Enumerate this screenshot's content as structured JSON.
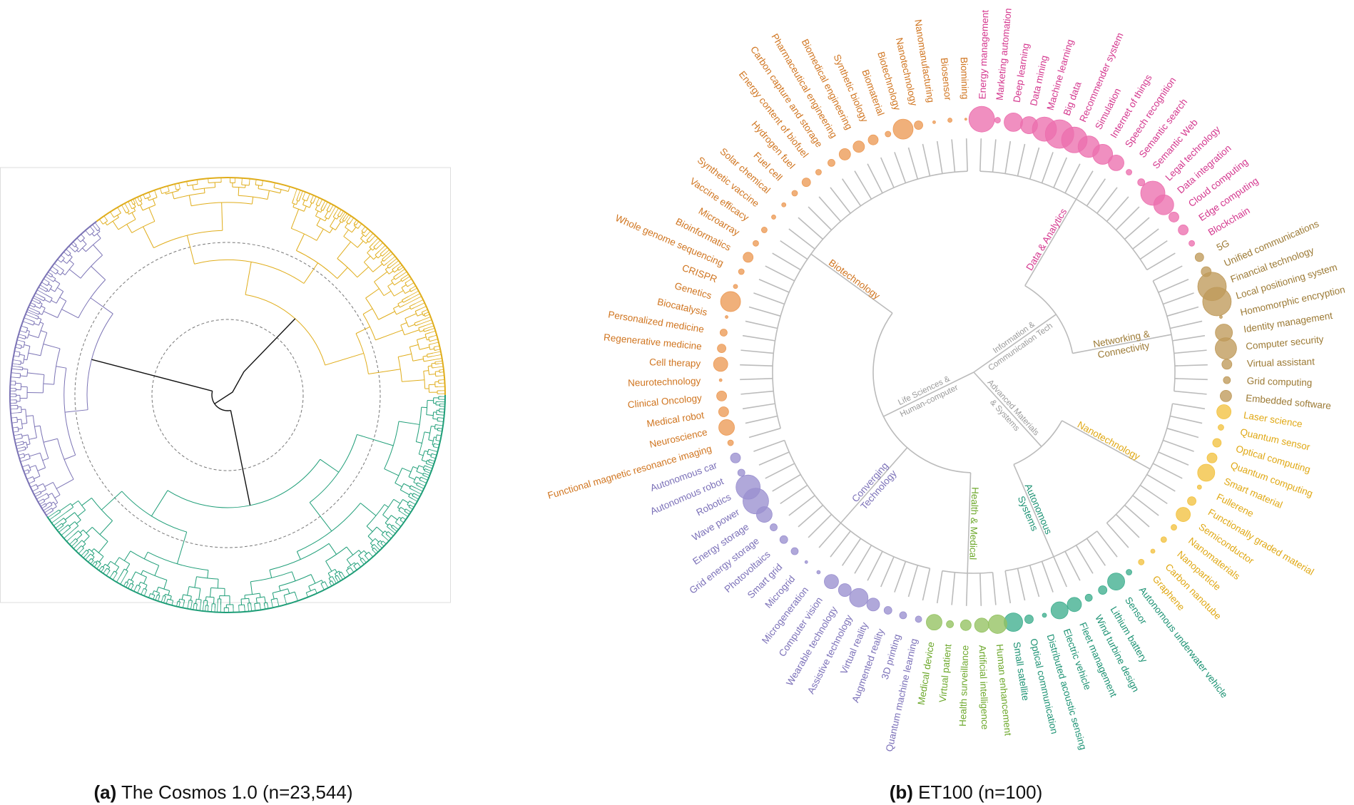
{
  "panel_a": {
    "caption_letter": "(a)",
    "caption_text": "The Cosmos 1.0 (n=23,544)",
    "clusters": [
      {
        "color": "#e0ad1b"
      },
      {
        "color": "#1f9e78"
      },
      {
        "color": "#7b73b5"
      }
    ],
    "root_color": "#111111",
    "guide_color": "#777777"
  },
  "panel_b": {
    "caption_letter": "(b)",
    "caption_text": "ET100 (n=100)",
    "branch_color": "#bbbbbb",
    "groups": [
      {
        "lines": [
          "Information &",
          "Communication Tech"
        ],
        "clusters": [
          0,
          1
        ]
      },
      {
        "lines": [
          "Advanced Materials",
          "& Systems"
        ],
        "clusters": [
          2,
          3
        ]
      },
      {
        "lines": [
          "Life Sciences &",
          "Human-computer"
        ],
        "clusters": [
          4,
          5,
          6
        ]
      }
    ],
    "clusters": [
      {
        "lines": [
          "Data & Analytics"
        ],
        "fill": "#ec6fae",
        "label_color": "#d4378e",
        "leaves": [
          {
            "name": "Energy management",
            "size": 18
          },
          {
            "name": "Marketing automation",
            "size": 4
          },
          {
            "name": "Deep learning",
            "size": 13
          },
          {
            "name": "Data mining",
            "size": 12
          },
          {
            "name": "Machine learning",
            "size": 17
          },
          {
            "name": "Big data",
            "size": 20
          },
          {
            "name": "Recommender system",
            "size": 18
          },
          {
            "name": "Simulation",
            "size": 15
          },
          {
            "name": "Internet of things",
            "size": 14
          },
          {
            "name": "Speech recognition",
            "size": 11
          },
          {
            "name": "Semantic search",
            "size": 4
          },
          {
            "name": "Semantic Web",
            "size": 5
          },
          {
            "name": "Legal technology",
            "size": 17
          },
          {
            "name": "Data integration",
            "size": 14
          },
          {
            "name": "Cloud computing",
            "size": 7
          },
          {
            "name": "Edge computing",
            "size": 7
          },
          {
            "name": "Blockchain",
            "size": 4
          }
        ]
      },
      {
        "lines": [
          "Networking &",
          "Connectivity"
        ],
        "fill": "#bf9a5a",
        "label_color": "#9c7a35",
        "leaves": [
          {
            "name": "5G",
            "size": 6
          },
          {
            "name": "Unified communications",
            "size": 7
          },
          {
            "name": "Financial technology",
            "size": 20
          },
          {
            "name": "Local positioning system",
            "size": 20
          },
          {
            "name": "Homomorphic encryption",
            "size": 2
          },
          {
            "name": "Identity management",
            "size": 12
          },
          {
            "name": "Computer security",
            "size": 15
          },
          {
            "name": "Virtual assistant",
            "size": 7
          },
          {
            "name": "Grid computing",
            "size": 5
          },
          {
            "name": "Embedded software",
            "size": 8
          }
        ]
      },
      {
        "lines": [
          "Nanotechnology"
        ],
        "fill": "#f2c240",
        "label_color": "#e0a814",
        "leaves": [
          {
            "name": "Laser science",
            "size": 10
          },
          {
            "name": "Quantum sensor",
            "size": 4
          },
          {
            "name": "Optical computing",
            "size": 6
          },
          {
            "name": "Quantum computing",
            "size": 7
          },
          {
            "name": "Smart material",
            "size": 12
          },
          {
            "name": "Fullerene",
            "size": 3
          },
          {
            "name": "Functionally graded material",
            "size": 6
          },
          {
            "name": "Semiconductor",
            "size": 10
          },
          {
            "name": "Nanomaterials",
            "size": 4
          },
          {
            "name": "Nanoparticle",
            "size": 4
          },
          {
            "name": "Carbon nanotube",
            "size": 3
          },
          {
            "name": "Graphene",
            "size": 4
          }
        ]
      },
      {
        "lines": [
          "Autonomous",
          "Systems"
        ],
        "fill": "#3fae8e",
        "label_color": "#1c9273",
        "leaves": [
          {
            "name": "Autonomous underwater vehicle",
            "size": 4
          },
          {
            "name": "Sensor",
            "size": 12
          },
          {
            "name": "Lithium battery",
            "size": 6
          },
          {
            "name": "Wind turbine design",
            "size": 5
          },
          {
            "name": "Fleet management",
            "size": 10
          },
          {
            "name": "Electric vehicle",
            "size": 12
          },
          {
            "name": "Distributed acoustic sensing",
            "size": 3
          },
          {
            "name": "Optical communication",
            "size": 6
          },
          {
            "name": "Small satellite",
            "size": 13
          }
        ]
      },
      {
        "lines": [
          "Health & Medical"
        ],
        "fill": "#93c260",
        "label_color": "#6da82c",
        "leaves": [
          {
            "name": "Human enhancement",
            "size": 13
          },
          {
            "name": "Artificial intelligence",
            "size": 10
          },
          {
            "name": "Health surveillance",
            "size": 7.5
          },
          {
            "name": "Virtual patient",
            "size": 5
          },
          {
            "name": "Medical device",
            "size": 11
          }
        ]
      },
      {
        "lines": [
          "Converging",
          "Technology"
        ],
        "fill": "#9a90cf",
        "label_color": "#7b70b8",
        "leaves": [
          {
            "name": "Quantum machine learning",
            "size": 4.5
          },
          {
            "name": "3D printing",
            "size": 5
          },
          {
            "name": "Augmented reality",
            "size": 5.5
          },
          {
            "name": "Virtual reality",
            "size": 9
          },
          {
            "name": "Assistive technology",
            "size": 13
          },
          {
            "name": "Wearable technology",
            "size": 9
          },
          {
            "name": "Computer vision",
            "size": 10
          },
          {
            "name": "Microgeneration",
            "size": 2.5
          },
          {
            "name": "Microgrid",
            "size": 2
          },
          {
            "name": "Smart grid",
            "size": 5
          },
          {
            "name": "Photovoltaics",
            "size": 5.5
          },
          {
            "name": "Grid energy storage",
            "size": 5
          },
          {
            "name": "Energy storage",
            "size": 11
          },
          {
            "name": "Wave power",
            "size": 18
          },
          {
            "name": "Robotics",
            "size": 17
          },
          {
            "name": "Autonomous robot",
            "size": 5
          },
          {
            "name": "Autonomous car",
            "size": 7
          }
        ]
      },
      {
        "lines": [
          "Biotechnology"
        ],
        "fill": "#ec9a55",
        "label_color": "#d07520",
        "leaves": [
          {
            "name": "Functional magnetic resonance imaging",
            "size": 4
          },
          {
            "name": "Neuroscience",
            "size": 11
          },
          {
            "name": "Medical robot",
            "size": 7
          },
          {
            "name": "Clinical Oncology",
            "size": 7
          },
          {
            "name": "Neurotechnology",
            "size": 2
          },
          {
            "name": "Cell therapy",
            "size": 10
          },
          {
            "name": "Regenerative medicine",
            "size": 6
          },
          {
            "name": "Personalized medicine",
            "size": 5
          },
          {
            "name": "Biocatalysis",
            "size": 2
          },
          {
            "name": "Genetics",
            "size": 14
          },
          {
            "name": "CRISPR",
            "size": 3
          },
          {
            "name": "Whole genome sequencing",
            "size": 4
          },
          {
            "name": "Bioinformatics",
            "size": 7
          },
          {
            "name": "Microarray",
            "size": 4
          },
          {
            "name": "Vaccine efficacy",
            "size": 4
          },
          {
            "name": "Synthetic vaccine",
            "size": 3
          },
          {
            "name": "Solar chemical",
            "size": 3
          },
          {
            "name": "Fuel cell",
            "size": 4
          },
          {
            "name": "Hydrogen fuel",
            "size": 6
          },
          {
            "name": "Energy content of biofuel",
            "size": 4
          },
          {
            "name": "Carbon capture and storage",
            "size": 5
          },
          {
            "name": "Pharmaceutical engineering",
            "size": 8
          },
          {
            "name": "Biomedical engineering",
            "size": 8
          },
          {
            "name": "Synthetic biology",
            "size": 7
          },
          {
            "name": "Biomaterial",
            "size": 4
          },
          {
            "name": "Biotechnology",
            "size": 14
          },
          {
            "name": "Nanotechnology",
            "size": 6
          },
          {
            "name": "Nanomanufacturing",
            "size": 2
          },
          {
            "name": "Biosensor",
            "size": 3
          },
          {
            "name": "Biomining",
            "size": 1.5
          }
        ]
      }
    ]
  }
}
